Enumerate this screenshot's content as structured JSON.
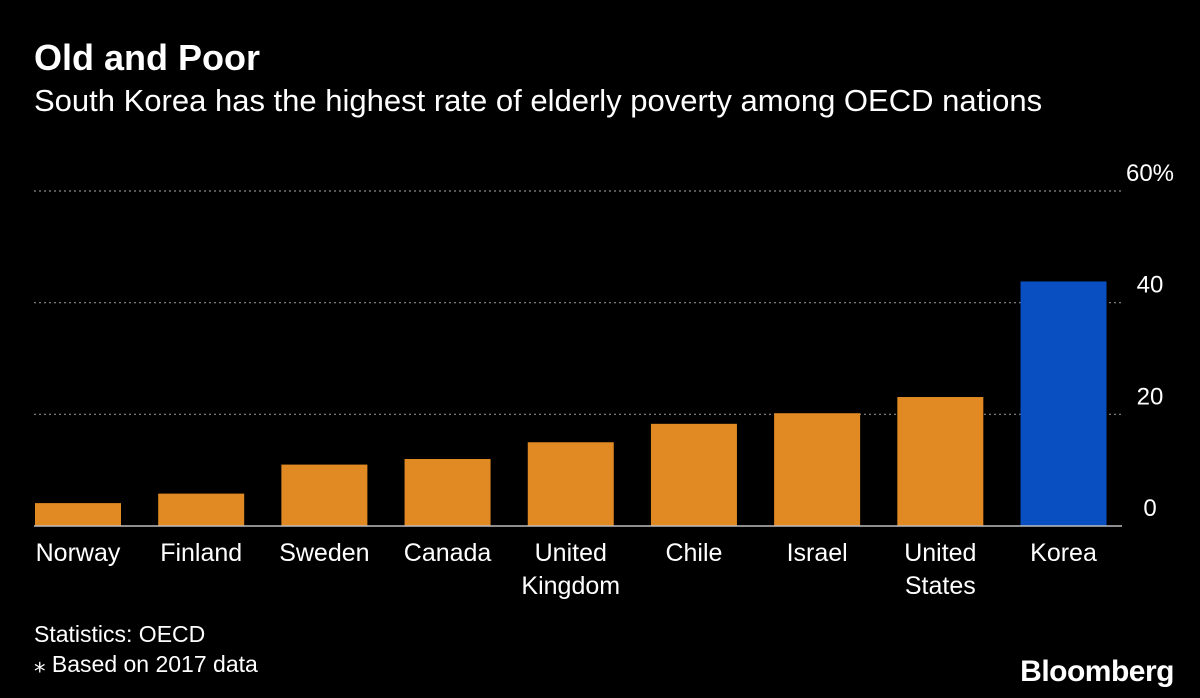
{
  "header": {
    "title": "Old and Poor",
    "subtitle": "South Korea has the highest rate of elderly poverty among OECD nations"
  },
  "footer": {
    "source": "Statistics: OECD",
    "note": "⁎ Based on 2017 data",
    "brand": "Bloomberg"
  },
  "colors": {
    "background": "#000000",
    "bar": "#E18A24",
    "highlight": "#0A4FC2",
    "grid": "#8c8c8c",
    "text": "#FFFFFF"
  },
  "chart_data": {
    "type": "bar",
    "categories": [
      [
        "Norway"
      ],
      [
        "Finland"
      ],
      [
        "Sweden"
      ],
      [
        "Canada"
      ],
      [
        "United",
        "Kingdom"
      ],
      [
        "Chile"
      ],
      [
        "Israel"
      ],
      [
        "United",
        "States"
      ],
      [
        "Korea"
      ]
    ],
    "values": [
      4.1,
      5.8,
      11.0,
      12.0,
      15.0,
      18.3,
      20.2,
      23.1,
      43.8
    ],
    "highlight_index": 8,
    "ylim": [
      0,
      60
    ],
    "yticks": [
      {
        "value": 0,
        "label": "0"
      },
      {
        "value": 20,
        "label": "20"
      },
      {
        "value": 40,
        "label": "40"
      },
      {
        "value": 60,
        "label": "60%"
      }
    ],
    "grid": true,
    "xlabel": "",
    "ylabel": ""
  }
}
